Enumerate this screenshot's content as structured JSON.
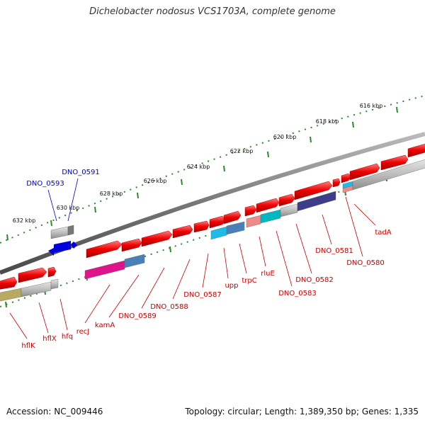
{
  "title": "Dichelobacter nodosus VCS1703A, complete genome",
  "accession": "Accession: NC_009446",
  "summary": "Topology: circular; Length: 1,389,350 bp; Genes: 1,335",
  "scale_labels": [
    "616 kbp",
    "618 kbp",
    "620 kbp",
    "622 kbp",
    "624 kbp",
    "626 kbp",
    "628 kbp",
    "630 kbp",
    "632 kbp"
  ],
  "genes_reverse_strand": [
    "DNO_0593",
    "DNO_0591"
  ],
  "genes_forward_strand": [
    "tadA",
    "DNO_0580",
    "DNO_0581",
    "DNO_0582",
    "DNO_0583",
    "rluE",
    "trpC",
    "upp",
    "DNO_0587",
    "DNO_0588",
    "DNO_0589",
    "kamA",
    "recJ",
    "hfq",
    "hflX",
    "hflK"
  ],
  "colors": {
    "gene": "#ee0000",
    "label_forward": "#cc0000",
    "label_reverse": "#0000cc",
    "backbone": "#888888",
    "tick": "#2a8a2a"
  }
}
